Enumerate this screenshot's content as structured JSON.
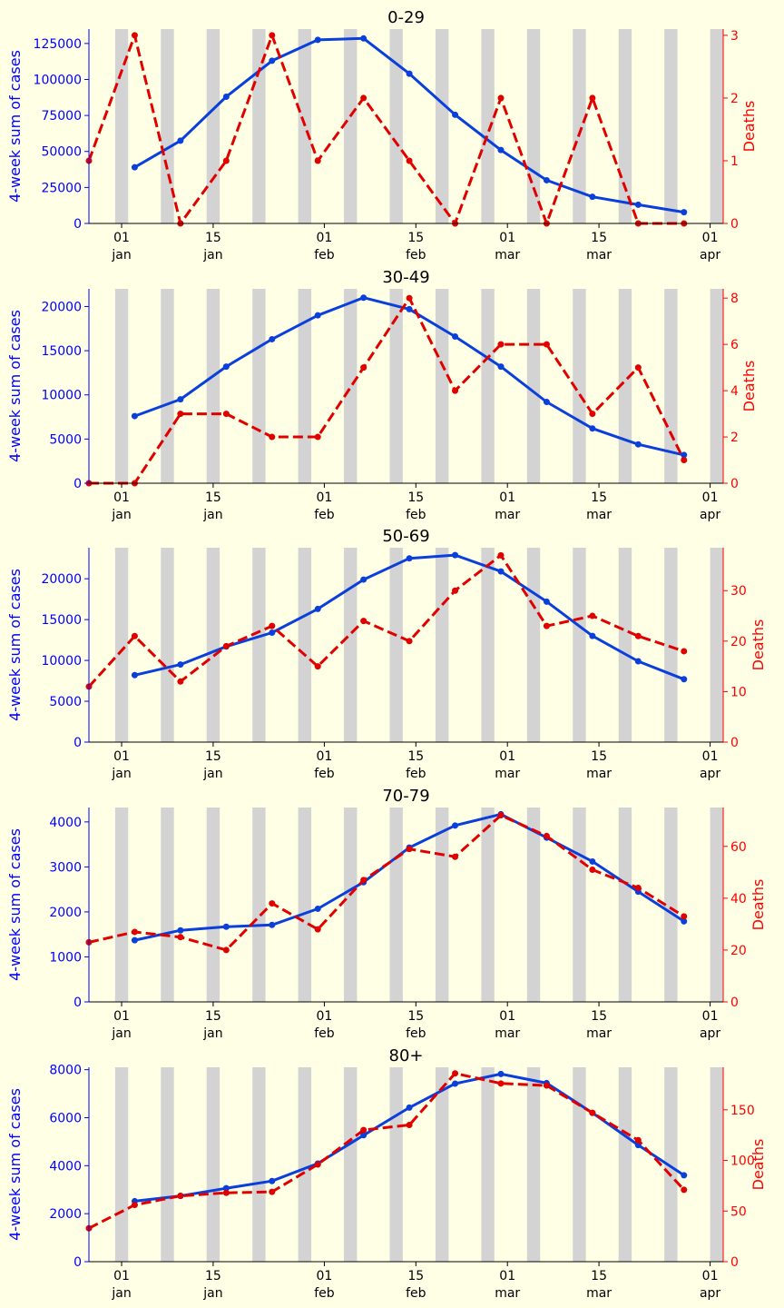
{
  "colors": {
    "background": "#ffffe6",
    "cases": "#0a3fdc",
    "cases_axis": "#0000ff",
    "deaths": "#e00000",
    "deaths_axis": "#ff0000",
    "shade": "#d3d3d3"
  },
  "x_tick_labels": [
    {
      "day": 1,
      "line1": "01",
      "line2": "jan"
    },
    {
      "day": 15,
      "line1": "15",
      "line2": "jan"
    },
    {
      "day": 32,
      "line1": "01",
      "line2": "feb"
    },
    {
      "day": 46,
      "line1": "15",
      "line2": "feb"
    },
    {
      "day": 60,
      "line1": "01",
      "line2": "mar"
    },
    {
      "day": 74,
      "line1": "15",
      "line2": "mar"
    },
    {
      "day": 91,
      "line1": "01",
      "line2": "apr"
    }
  ],
  "chart_data": [
    {
      "type": "line",
      "title": "0-29",
      "ylabel_left": "4-week sum of cases",
      "ylabel_right": "Deaths",
      "grid": false,
      "xlim": [
        -4,
        93
      ],
      "ylim_left": [
        0,
        135000
      ],
      "ylim_right": [
        0,
        3.1
      ],
      "yticks_left": [
        0,
        25000,
        50000,
        75000,
        100000,
        125000
      ],
      "yticks_right": [
        0,
        1,
        2,
        3
      ],
      "shaded_day_ranges": [
        [
          0,
          2
        ],
        [
          7,
          9
        ],
        [
          14,
          16
        ],
        [
          21,
          23
        ],
        [
          28,
          30
        ],
        [
          35,
          37
        ],
        [
          42,
          44
        ],
        [
          49,
          51
        ],
        [
          56,
          58
        ],
        [
          63,
          65
        ],
        [
          70,
          72
        ],
        [
          77,
          79
        ],
        [
          84,
          86
        ],
        [
          91,
          93
        ]
      ],
      "series": [
        {
          "axis": "left",
          "style": "solid",
          "points": [
            [
              3,
              39000
            ],
            [
              10,
              57500
            ],
            [
              17,
              88000
            ],
            [
              24,
              113000
            ],
            [
              31,
              127500
            ],
            [
              38,
              128500
            ],
            [
              45,
              104000
            ],
            [
              52,
              75500
            ],
            [
              59,
              51000
            ],
            [
              66,
              30000
            ],
            [
              73,
              18500
            ],
            [
              80,
              13000
            ],
            [
              87,
              7800
            ]
          ]
        },
        {
          "name": "Deaths",
          "axis": "right",
          "style": "dashed",
          "points": [
            [
              -4,
              1
            ],
            [
              3,
              3
            ],
            [
              10,
              0
            ],
            [
              17,
              1
            ],
            [
              24,
              3
            ],
            [
              31,
              1
            ],
            [
              38,
              2
            ],
            [
              45,
              1
            ],
            [
              52,
              0
            ],
            [
              59,
              2
            ],
            [
              66,
              0
            ],
            [
              73,
              2
            ],
            [
              80,
              0
            ],
            [
              87,
              0
            ]
          ]
        }
      ]
    },
    {
      "type": "line",
      "title": "30-49",
      "ylabel_left": "4-week sum of cases",
      "ylabel_right": "Deaths",
      "grid": false,
      "xlim": [
        -4,
        93
      ],
      "ylim_left": [
        0,
        22000
      ],
      "ylim_right": [
        0,
        8.4
      ],
      "yticks_left": [
        0,
        5000,
        10000,
        15000,
        20000
      ],
      "yticks_right": [
        0,
        2,
        4,
        6,
        8
      ],
      "shaded_day_ranges": [
        [
          0,
          2
        ],
        [
          7,
          9
        ],
        [
          14,
          16
        ],
        [
          21,
          23
        ],
        [
          28,
          30
        ],
        [
          35,
          37
        ],
        [
          42,
          44
        ],
        [
          49,
          51
        ],
        [
          56,
          58
        ],
        [
          63,
          65
        ],
        [
          70,
          72
        ],
        [
          77,
          79
        ],
        [
          84,
          86
        ],
        [
          91,
          93
        ]
      ],
      "series": [
        {
          "axis": "left",
          "style": "solid",
          "points": [
            [
              3,
              7600
            ],
            [
              10,
              9500
            ],
            [
              17,
              13200
            ],
            [
              24,
              16300
            ],
            [
              31,
              19000
            ],
            [
              38,
              21000
            ],
            [
              45,
              19700
            ],
            [
              52,
              16600
            ],
            [
              59,
              13200
            ],
            [
              66,
              9200
            ],
            [
              73,
              6200
            ],
            [
              80,
              4400
            ],
            [
              87,
              3200
            ]
          ]
        },
        {
          "name": "Deaths",
          "axis": "right",
          "style": "dashed",
          "points": [
            [
              -4,
              0
            ],
            [
              3,
              0
            ],
            [
              10,
              3
            ],
            [
              17,
              3
            ],
            [
              24,
              2
            ],
            [
              31,
              2
            ],
            [
              38,
              5
            ],
            [
              45,
              8
            ],
            [
              52,
              4
            ],
            [
              59,
              6
            ],
            [
              66,
              6
            ],
            [
              73,
              3
            ],
            [
              80,
              5
            ],
            [
              87,
              1
            ]
          ]
        }
      ]
    },
    {
      "type": "line",
      "title": "50-69",
      "ylabel_left": "4-week sum of cases",
      "ylabel_right": "Deaths",
      "grid": false,
      "xlim": [
        -4,
        93
      ],
      "ylim_left": [
        0,
        23800
      ],
      "ylim_right": [
        0,
        38.5
      ],
      "yticks_left": [
        0,
        5000,
        10000,
        15000,
        20000
      ],
      "yticks_right": [
        0,
        10,
        20,
        30
      ],
      "shaded_day_ranges": [
        [
          0,
          2
        ],
        [
          7,
          9
        ],
        [
          14,
          16
        ],
        [
          21,
          23
        ],
        [
          28,
          30
        ],
        [
          35,
          37
        ],
        [
          42,
          44
        ],
        [
          49,
          51
        ],
        [
          56,
          58
        ],
        [
          63,
          65
        ],
        [
          70,
          72
        ],
        [
          77,
          79
        ],
        [
          84,
          86
        ],
        [
          91,
          93
        ]
      ],
      "series": [
        {
          "axis": "left",
          "style": "solid",
          "points": [
            [
              3,
              8200
            ],
            [
              10,
              9500
            ],
            [
              17,
              11700
            ],
            [
              24,
              13400
            ],
            [
              31,
              16300
            ],
            [
              38,
              19900
            ],
            [
              45,
              22500
            ],
            [
              52,
              22900
            ],
            [
              59,
              20900
            ],
            [
              66,
              17200
            ],
            [
              73,
              13000
            ],
            [
              80,
              9900
            ],
            [
              87,
              7700
            ]
          ]
        },
        {
          "name": "Deaths",
          "axis": "right",
          "style": "dashed",
          "points": [
            [
              -4,
              11
            ],
            [
              3,
              21
            ],
            [
              10,
              12
            ],
            [
              17,
              19
            ],
            [
              24,
              23
            ],
            [
              31,
              15
            ],
            [
              38,
              24
            ],
            [
              45,
              20
            ],
            [
              52,
              30
            ],
            [
              59,
              37
            ],
            [
              66,
              23
            ],
            [
              73,
              25
            ],
            [
              80,
              21
            ],
            [
              87,
              18
            ]
          ]
        }
      ]
    },
    {
      "type": "line",
      "title": "70-79",
      "ylabel_left": "4-week sum of cases",
      "ylabel_right": "Deaths",
      "grid": false,
      "xlim": [
        -4,
        93
      ],
      "ylim_left": [
        0,
        4320
      ],
      "ylim_right": [
        0,
        75
      ],
      "yticks_left": [
        0,
        1000,
        2000,
        3000,
        4000
      ],
      "yticks_right": [
        0,
        20,
        40,
        60
      ],
      "shaded_day_ranges": [
        [
          0,
          2
        ],
        [
          7,
          9
        ],
        [
          14,
          16
        ],
        [
          21,
          23
        ],
        [
          28,
          30
        ],
        [
          35,
          37
        ],
        [
          42,
          44
        ],
        [
          49,
          51
        ],
        [
          56,
          58
        ],
        [
          63,
          65
        ],
        [
          70,
          72
        ],
        [
          77,
          79
        ],
        [
          84,
          86
        ],
        [
          91,
          93
        ]
      ],
      "series": [
        {
          "axis": "left",
          "style": "solid",
          "points": [
            [
              3,
              1370
            ],
            [
              10,
              1590
            ],
            [
              17,
              1670
            ],
            [
              24,
              1710
            ],
            [
              31,
              2070
            ],
            [
              38,
              2660
            ],
            [
              45,
              3430
            ],
            [
              52,
              3920
            ],
            [
              59,
              4170
            ],
            [
              66,
              3650
            ],
            [
              73,
              3120
            ],
            [
              80,
              2450
            ],
            [
              87,
              1790
            ]
          ]
        },
        {
          "name": "Deaths",
          "axis": "right",
          "style": "dashed",
          "points": [
            [
              -4,
              23
            ],
            [
              3,
              27
            ],
            [
              10,
              25
            ],
            [
              17,
              20
            ],
            [
              24,
              38
            ],
            [
              31,
              28
            ],
            [
              38,
              47
            ],
            [
              45,
              59
            ],
            [
              52,
              56
            ],
            [
              59,
              72
            ],
            [
              66,
              64
            ],
            [
              73,
              51
            ],
            [
              80,
              44
            ],
            [
              87,
              33
            ]
          ]
        }
      ]
    },
    {
      "type": "line",
      "title": "80+",
      "ylabel_left": "4-week sum of cases",
      "ylabel_right": "Deaths",
      "grid": false,
      "xlim": [
        -4,
        93
      ],
      "ylim_left": [
        0,
        8100
      ],
      "ylim_right": [
        0,
        192
      ],
      "yticks_left": [
        0,
        2000,
        4000,
        6000,
        8000
      ],
      "yticks_right": [
        0,
        50,
        100,
        150
      ],
      "shaded_day_ranges": [
        [
          0,
          2
        ],
        [
          7,
          9
        ],
        [
          14,
          16
        ],
        [
          21,
          23
        ],
        [
          28,
          30
        ],
        [
          35,
          37
        ],
        [
          42,
          44
        ],
        [
          49,
          51
        ],
        [
          56,
          58
        ],
        [
          63,
          65
        ],
        [
          70,
          72
        ],
        [
          77,
          79
        ],
        [
          84,
          86
        ],
        [
          91,
          93
        ]
      ],
      "series": [
        {
          "axis": "left",
          "style": "solid",
          "points": [
            [
              3,
              2520
            ],
            [
              10,
              2740
            ],
            [
              17,
              3060
            ],
            [
              24,
              3360
            ],
            [
              31,
              4090
            ],
            [
              38,
              5270
            ],
            [
              45,
              6420
            ],
            [
              52,
              7420
            ],
            [
              59,
              7820
            ],
            [
              66,
              7440
            ],
            [
              73,
              6200
            ],
            [
              80,
              4860
            ],
            [
              87,
              3600
            ]
          ]
        },
        {
          "name": "Deaths",
          "axis": "right",
          "style": "dashed",
          "points": [
            [
              -4,
              33
            ],
            [
              3,
              56
            ],
            [
              10,
              65
            ],
            [
              17,
              68
            ],
            [
              24,
              69
            ],
            [
              31,
              96
            ],
            [
              38,
              130
            ],
            [
              45,
              135
            ],
            [
              52,
              186
            ],
            [
              59,
              176
            ],
            [
              66,
              174
            ],
            [
              73,
              147
            ],
            [
              80,
              120
            ],
            [
              87,
              71
            ]
          ]
        }
      ]
    }
  ]
}
